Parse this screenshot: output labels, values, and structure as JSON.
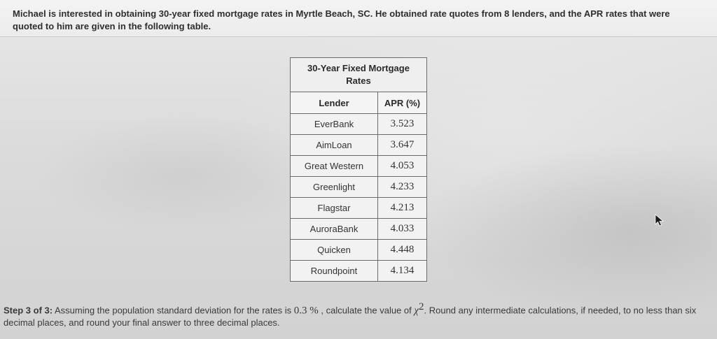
{
  "problem": {
    "intro_text": "Michael is interested in obtaining 30-year fixed mortgage rates in Myrtle Beach, SC. He obtained rate quotes from 8 lenders, and the APR rates that were quoted to him are given in the following table."
  },
  "table": {
    "caption": "30-Year Fixed Mortgage Rates",
    "headers": [
      "Lender",
      "APR (%)"
    ],
    "rows": [
      {
        "lender": "EverBank",
        "apr": "3.523"
      },
      {
        "lender": "AimLoan",
        "apr": "3.647"
      },
      {
        "lender": "Great Western",
        "apr": "4.053"
      },
      {
        "lender": "Greenlight",
        "apr": "4.233"
      },
      {
        "lender": "Flagstar",
        "apr": "4.213"
      },
      {
        "lender": "AuroraBank",
        "apr": "4.033"
      },
      {
        "lender": "Quicken",
        "apr": "4.448"
      },
      {
        "lender": "Roundpoint",
        "apr": "4.134"
      }
    ]
  },
  "step": {
    "label": "Step 3 of 3:",
    "text_before": " Assuming the population standard deviation for the rates is ",
    "sigma_value": "0.3 %",
    "text_middle": " , calculate the value of ",
    "chi_symbol": "χ",
    "chi_exponent": "2",
    "text_after": ". Round any intermediate calculations, if needed, to no less than six decimal places, and round your final answer to three decimal places."
  },
  "cursor": {
    "icon": "mouse-pointer-icon"
  }
}
